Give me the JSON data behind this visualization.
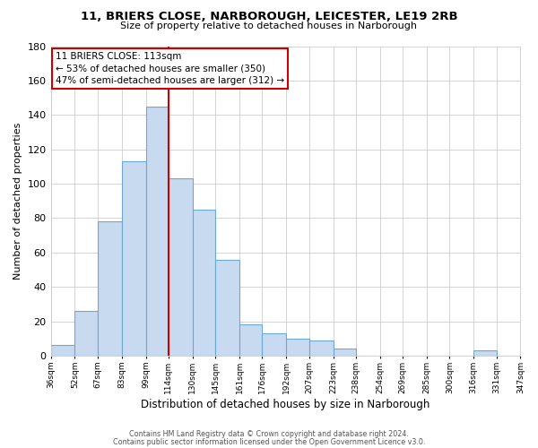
{
  "title": "11, BRIERS CLOSE, NARBOROUGH, LEICESTER, LE19 2RB",
  "subtitle": "Size of property relative to detached houses in Narborough",
  "xlabel": "Distribution of detached houses by size in Narborough",
  "ylabel": "Number of detached properties",
  "bar_edges": [
    36,
    52,
    67,
    83,
    99,
    114,
    130,
    145,
    161,
    176,
    192,
    207,
    223,
    238,
    254,
    269,
    285,
    300,
    316,
    331,
    347
  ],
  "bar_heights": [
    6,
    26,
    78,
    113,
    145,
    103,
    85,
    56,
    18,
    13,
    10,
    9,
    4,
    0,
    0,
    0,
    0,
    0,
    3,
    0,
    0
  ],
  "bar_color": "#c8daf0",
  "bar_edge_color": "#6aaad4",
  "vline_x": 114,
  "vline_color": "#cc0000",
  "annotation_title": "11 BRIERS CLOSE: 113sqm",
  "annotation_line1": "← 53% of detached houses are smaller (350)",
  "annotation_line2": "47% of semi-detached houses are larger (312) →",
  "annotation_box_color": "#ffffff",
  "annotation_box_edge_color": "#cc0000",
  "ylim": [
    0,
    180
  ],
  "tick_labels": [
    "36sqm",
    "52sqm",
    "67sqm",
    "83sqm",
    "99sqm",
    "114sqm",
    "130sqm",
    "145sqm",
    "161sqm",
    "176sqm",
    "192sqm",
    "207sqm",
    "223sqm",
    "238sqm",
    "254sqm",
    "269sqm",
    "285sqm",
    "300sqm",
    "316sqm",
    "331sqm",
    "347sqm"
  ],
  "footer_line1": "Contains HM Land Registry data © Crown copyright and database right 2024.",
  "footer_line2": "Contains public sector information licensed under the Open Government Licence v3.0.",
  "background_color": "#ffffff",
  "grid_color": "#cccccc"
}
